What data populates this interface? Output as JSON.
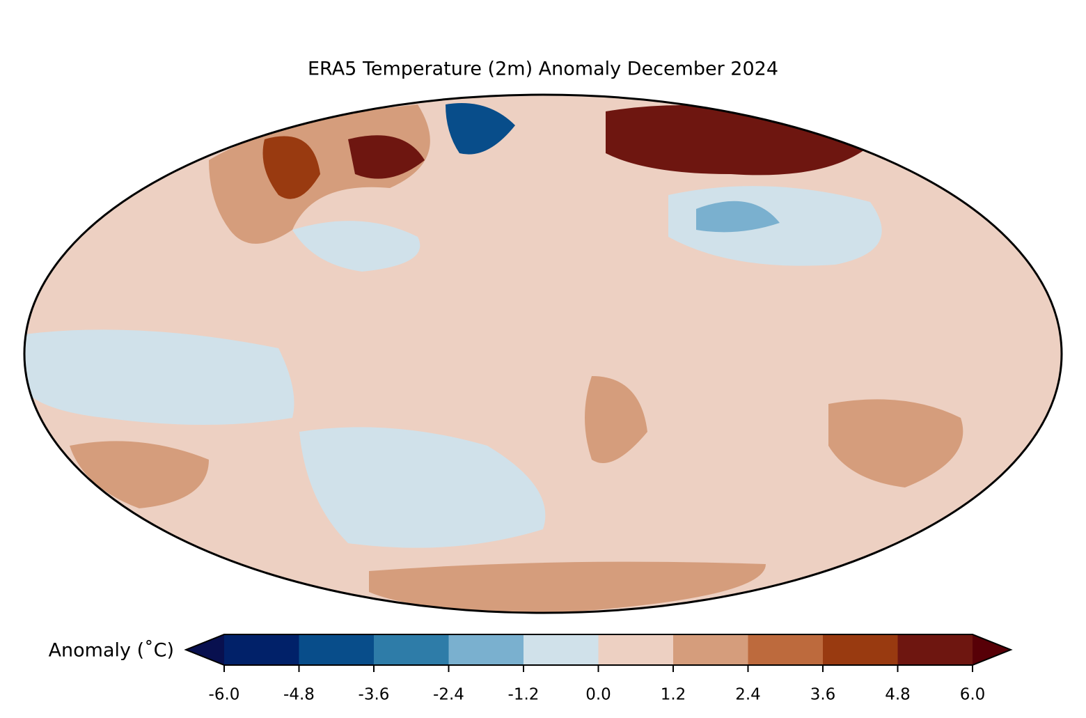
{
  "title": "ERA5 Temperature (2m) Anomaly December 2024",
  "colorbar": {
    "label": "Anomaly (˚C)",
    "ticks": [
      {
        "value": -6,
        "label": "-6.0"
      },
      -4.8,
      -3.6,
      -2.4,
      -1.2,
      {
        "value": 0,
        "label": "0.0"
      },
      1.2,
      2.4,
      3.6,
      4.8,
      {
        "value": 6,
        "label": "6.0"
      }
    ],
    "colors": [
      "#012169",
      "#084d8a",
      "#2e7ca8",
      "#7ab0cf",
      "#d0e1ea",
      "#edd0c2",
      "#d59d7c",
      "#bd6a3d",
      "#993a10",
      "#6e1610"
    ],
    "under": "#08104f",
    "over": "#570007"
  }
}
